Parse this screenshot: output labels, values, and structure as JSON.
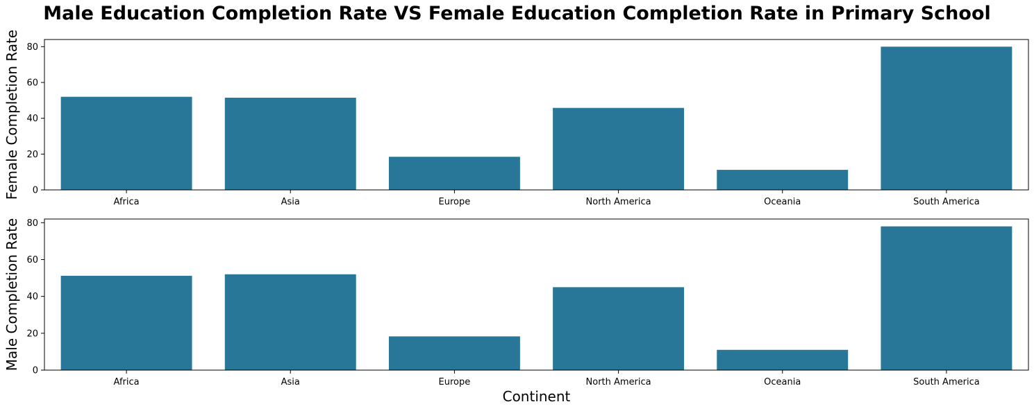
{
  "chart_data": {
    "title": "Male Education Completion Rate VS Female Education Completion Rate in Primary School",
    "bar_color": "#2876985",
    "panels": [
      {
        "type": "bar",
        "ylabel": "Female Completion Rate",
        "xlabel": "",
        "categories": [
          "Africa",
          "Asia",
          "Europe",
          "North America",
          "Oceania",
          "South America"
        ],
        "values": [
          52,
          51.5,
          18.5,
          45.8,
          11.2,
          80
        ],
        "ylim": [
          0,
          84
        ],
        "yticks": [
          0,
          20,
          40,
          60,
          80
        ],
        "grid": false
      },
      {
        "type": "bar",
        "ylabel": "Male Completion Rate",
        "xlabel": "Continent",
        "categories": [
          "Africa",
          "Asia",
          "Europe",
          "North America",
          "Oceania",
          "South America"
        ],
        "values": [
          51.2,
          52,
          18.3,
          45,
          11,
          78
        ],
        "ylim": [
          0,
          82
        ],
        "yticks": [
          0,
          20,
          40,
          60,
          80
        ],
        "grid": false
      }
    ]
  }
}
